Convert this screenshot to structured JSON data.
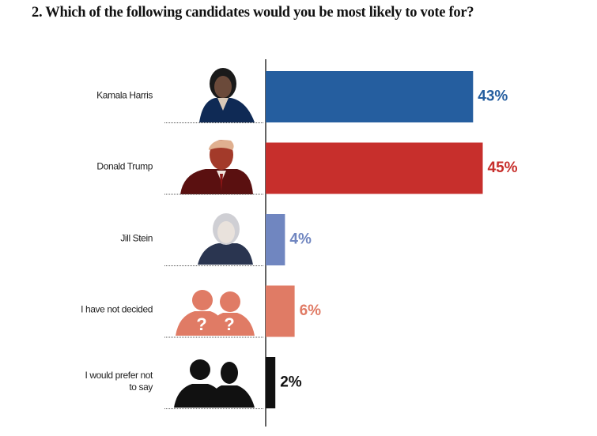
{
  "chart_data": {
    "type": "hbar",
    "title": "2. Which of the following candidates would you be most likely to vote for?",
    "categories": [
      "Kamala Harris",
      "Donald Trump",
      "Jill Stein",
      "I have not decided",
      "I would prefer not to say"
    ],
    "values": [
      43,
      45,
      4,
      6,
      2
    ],
    "value_labels": [
      "43%",
      "45%",
      "4%",
      "6%",
      "2%"
    ],
    "colors": [
      "#255e9f",
      "#c72f2c",
      "#7086c0",
      "#e07b65",
      "#111111"
    ],
    "annotations": [
      "?",
      "?"
    ]
  }
}
